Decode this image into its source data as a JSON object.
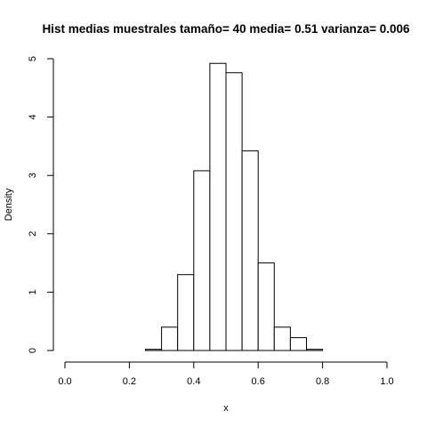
{
  "chart_data": {
    "type": "bar",
    "subtype": "histogram",
    "title": "Hist medias muestrales  tamaño= 40 media= 0.51 varianza= 0.006",
    "xlabel": "x",
    "ylabel": "Density",
    "xlim": [
      0,
      1
    ],
    "ylim": [
      0,
      5
    ],
    "x_ticks": [
      "0.0",
      "0.2",
      "0.4",
      "0.6",
      "0.8",
      "1.0"
    ],
    "y_ticks": [
      "0",
      "1",
      "2",
      "3",
      "4",
      "5"
    ],
    "grid": false,
    "bin_width": 0.05,
    "bins": [
      {
        "start": 0.25,
        "end": 0.3,
        "density": 0.02
      },
      {
        "start": 0.3,
        "end": 0.35,
        "density": 0.4
      },
      {
        "start": 0.35,
        "end": 0.4,
        "density": 1.3
      },
      {
        "start": 0.4,
        "end": 0.45,
        "density": 3.08
      },
      {
        "start": 0.45,
        "end": 0.5,
        "density": 4.92
      },
      {
        "start": 0.5,
        "end": 0.55,
        "density": 4.76
      },
      {
        "start": 0.55,
        "end": 0.6,
        "density": 3.42
      },
      {
        "start": 0.6,
        "end": 0.65,
        "density": 1.5
      },
      {
        "start": 0.65,
        "end": 0.7,
        "density": 0.4
      },
      {
        "start": 0.7,
        "end": 0.75,
        "density": 0.22
      },
      {
        "start": 0.75,
        "end": 0.8,
        "density": 0.02
      }
    ]
  }
}
